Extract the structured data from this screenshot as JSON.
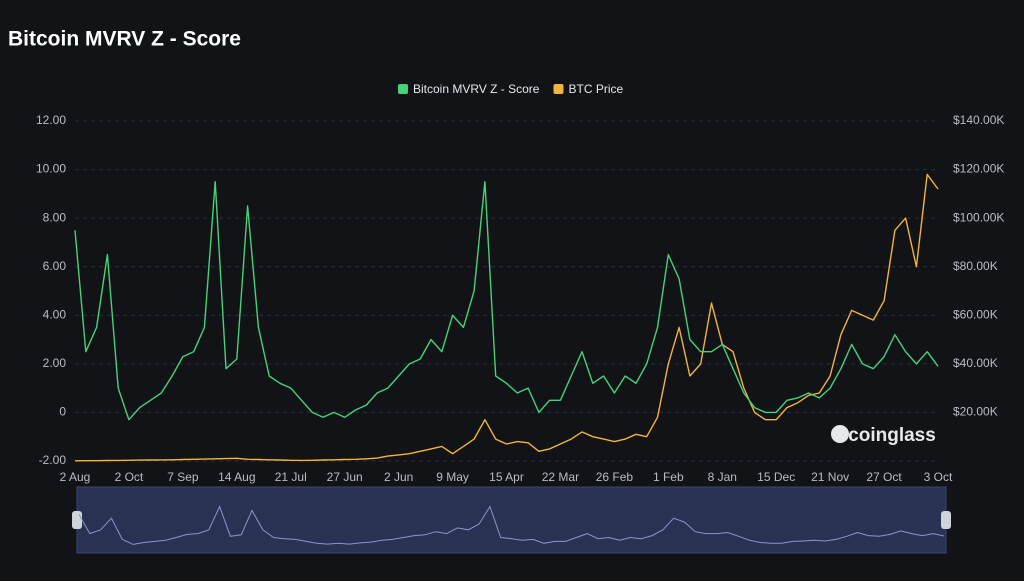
{
  "chart_data": {
    "type": "line",
    "title": "Bitcoin MVRV Z - Score",
    "watermark": "coinglass",
    "categories": [
      "2 Aug",
      null,
      null,
      null,
      null,
      "2 Oct",
      null,
      null,
      null,
      null,
      "7 Sep",
      null,
      null,
      null,
      null,
      "14 Aug",
      null,
      null,
      null,
      null,
      "21 Jul",
      null,
      null,
      null,
      null,
      "27 Jun",
      null,
      null,
      null,
      null,
      "2 Jun",
      null,
      null,
      null,
      null,
      "9 May",
      null,
      null,
      null,
      null,
      "15 Apr",
      null,
      null,
      null,
      null,
      "22 Mar",
      null,
      null,
      null,
      null,
      "26 Feb",
      null,
      null,
      null,
      null,
      "1 Feb",
      null,
      null,
      null,
      null,
      "8 Jan",
      null,
      null,
      null,
      null,
      "15 Dec",
      null,
      null,
      null,
      null,
      "21 Nov",
      null,
      null,
      null,
      null,
      "27 Oct",
      null,
      null,
      null,
      null,
      "3 Oct"
    ],
    "series": [
      {
        "name": "Bitcoin MVRV Z - Score",
        "color": "#45d27a",
        "axis": "y",
        "values": [
          7.5,
          2.5,
          3.5,
          6.5,
          1.0,
          -0.3,
          0.2,
          0.5,
          0.8,
          1.5,
          2.3,
          2.5,
          3.5,
          9.5,
          1.8,
          2.2,
          8.5,
          3.5,
          1.5,
          1.2,
          1.0,
          0.5,
          0.0,
          -0.2,
          0.0,
          -0.2,
          0.1,
          0.3,
          0.8,
          1.0,
          1.5,
          2.0,
          2.2,
          3.0,
          2.5,
          4.0,
          3.5,
          5.0,
          9.5,
          1.5,
          1.2,
          0.8,
          1.0,
          0.0,
          0.5,
          0.5,
          1.5,
          2.5,
          1.2,
          1.5,
          0.8,
          1.5,
          1.2,
          2.0,
          3.5,
          6.5,
          5.5,
          3.0,
          2.5,
          2.5,
          2.8,
          1.8,
          0.8,
          0.2,
          0.0,
          0.0,
          0.5,
          0.6,
          0.8,
          0.6,
          1.0,
          1.8,
          2.8,
          2.0,
          1.8,
          2.3,
          3.2,
          2.5,
          2.0,
          2.5,
          1.9
        ]
      },
      {
        "name": "BTC Price",
        "color": "#f2b43c",
        "axis": "y2",
        "values": [
          100,
          120,
          130,
          200,
          250,
          300,
          350,
          400,
          450,
          500,
          600,
          700,
          800,
          900,
          1000,
          1100,
          700,
          600,
          500,
          400,
          300,
          250,
          300,
          400,
          500,
          600,
          700,
          900,
          1200,
          2000,
          2500,
          3000,
          4000,
          5000,
          6000,
          3000,
          6000,
          9000,
          17000,
          9000,
          7000,
          8000,
          7500,
          4000,
          5000,
          7000,
          9000,
          12000,
          10000,
          9000,
          8000,
          9000,
          11000,
          10000,
          18000,
          40000,
          55000,
          35000,
          40000,
          65000,
          48000,
          45000,
          30000,
          20000,
          17000,
          17000,
          22000,
          24000,
          27000,
          28000,
          35000,
          52000,
          62000,
          60000,
          58000,
          66000,
          95000,
          100000,
          80000,
          118000,
          112000
        ]
      }
    ],
    "ylim": [
      -2,
      12
    ],
    "yticks": [
      {
        "value": -2,
        "label": "-2.00"
      },
      0,
      {
        "value": 2,
        "label": "2.00"
      },
      {
        "value": 4,
        "label": "4.00"
      },
      {
        "value": 6,
        "label": "6.00"
      },
      {
        "value": 8,
        "label": "8.00"
      },
      {
        "value": 10,
        "label": "10.00"
      },
      {
        "value": 12,
        "label": "12.00"
      }
    ],
    "y2lim": [
      0,
      140000
    ],
    "y2ticks": [
      {
        "value": 20000,
        "label": "$20.00K"
      },
      {
        "value": 40000,
        "label": "$40.00K"
      },
      {
        "value": 60000,
        "label": "$60.00K"
      },
      {
        "value": 80000,
        "label": "$80.00K"
      },
      {
        "value": 100000,
        "label": "$100.00K"
      },
      {
        "value": 120000,
        "label": "$120.00K"
      },
      {
        "value": 140000,
        "label": "$140.00K"
      }
    ],
    "grid": true,
    "legend": "top"
  }
}
